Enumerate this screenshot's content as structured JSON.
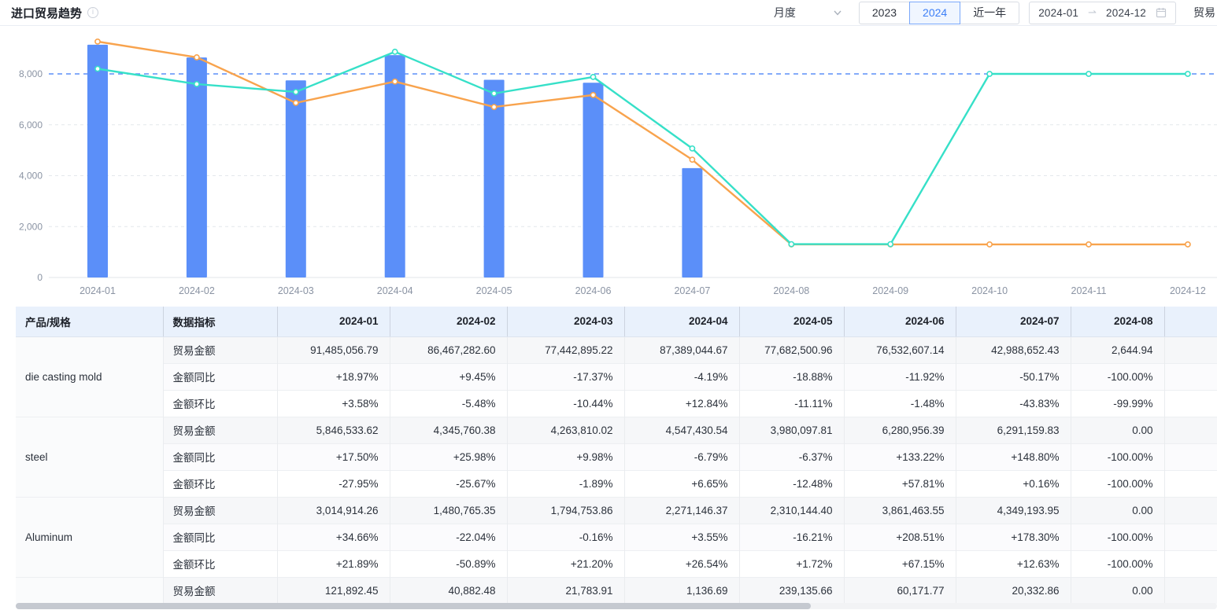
{
  "header": {
    "title": "进口贸易趋势",
    "period_select": "月度",
    "year_tabs": [
      "2023",
      "2024",
      "近一年"
    ],
    "active_year_tab": "2024",
    "date_start": "2024-01",
    "date_end": "2024-12",
    "metric_select_clipped": "贸易"
  },
  "colors": {
    "accent": "#3d7ff7",
    "bar": "#5b8ff9",
    "line_orange": "#f8a34d",
    "line_teal": "#36e0c8",
    "markline": "#5b8ff9",
    "up_red": "#f34b4b",
    "down_green": "#19b477",
    "header_bg": "#e9f1fc"
  },
  "chart_data": {
    "type": "bar",
    "title": "进口贸易趋势",
    "categories": [
      "2024-01",
      "2024-02",
      "2024-03",
      "2024-04",
      "2024-05",
      "2024-06",
      "2024-07",
      "2024-08",
      "2024-09",
      "2024-10",
      "2024-11",
      "2024-12"
    ],
    "series": [
      {
        "name": "bar-series",
        "type": "bar",
        "color": "#5b8ff9",
        "values": [
          9148.5,
          8646.7,
          7744.3,
          8738.9,
          7768.3,
          7653.3,
          4298.9,
          0.3,
          0,
          0,
          0,
          0
        ]
      },
      {
        "name": "line-series-1",
        "type": "line",
        "color": "#f8a34d",
        "values": [
          9270,
          8650,
          6860,
          7700,
          6700,
          7170,
          4630,
          1300,
          1300,
          1300,
          1300,
          1300
        ]
      },
      {
        "name": "line-series-2",
        "type": "line",
        "color": "#36e0c8",
        "values": [
          8200,
          7600,
          7290,
          8870,
          7230,
          7880,
          5070,
          1310,
          1310,
          8000,
          8000,
          8000
        ]
      }
    ],
    "markline": {
      "value": 8000,
      "color": "#5b8ff9",
      "style": "dashed"
    },
    "ylim": [
      0,
      9600
    ],
    "yticks": [
      0,
      2000,
      4000,
      6000,
      8000
    ],
    "ytick_labels": [
      "0",
      "2,000",
      "4,000",
      "6,000",
      "8,000"
    ],
    "grid": "horizontal dashed",
    "legend": "none"
  },
  "table": {
    "columns": [
      "产品/规格",
      "数据指标",
      "2024-01",
      "2024-02",
      "2024-03",
      "2024-04",
      "2024-05",
      "2024-06",
      "2024-07",
      "2024-08",
      ""
    ],
    "products": [
      {
        "name": "die casting mold",
        "rows": [
          {
            "label": "贸易金额",
            "values": [
              "91,485,056.79",
              "86,467,282.60",
              "77,442,895.22",
              "87,389,044.67",
              "77,682,500.96",
              "76,532,607.14",
              "42,988,652.43",
              "2,644.94"
            ]
          },
          {
            "label": "金额同比",
            "values": [
              "+18.97%",
              "+9.45%",
              "-17.37%",
              "-4.19%",
              "-18.88%",
              "-11.92%",
              "-50.17%",
              "-100.00%"
            ]
          },
          {
            "label": "金额环比",
            "values": [
              "+3.58%",
              "-5.48%",
              "-10.44%",
              "+12.84%",
              "-11.11%",
              "-1.48%",
              "-43.83%",
              "-99.99%"
            ]
          }
        ]
      },
      {
        "name": "steel",
        "rows": [
          {
            "label": "贸易金额",
            "values": [
              "5,846,533.62",
              "4,345,760.38",
              "4,263,810.02",
              "4,547,430.54",
              "3,980,097.81",
              "6,280,956.39",
              "6,291,159.83",
              "0.00"
            ]
          },
          {
            "label": "金额同比",
            "values": [
              "+17.50%",
              "+25.98%",
              "+9.98%",
              "-6.79%",
              "-6.37%",
              "+133.22%",
              "+148.80%",
              "-100.00%"
            ]
          },
          {
            "label": "金额环比",
            "values": [
              "-27.95%",
              "-25.67%",
              "-1.89%",
              "+6.65%",
              "-12.48%",
              "+57.81%",
              "+0.16%",
              "-100.00%"
            ]
          }
        ]
      },
      {
        "name": "Aluminum",
        "rows": [
          {
            "label": "贸易金额",
            "values": [
              "3,014,914.26",
              "1,480,765.35",
              "1,794,753.86",
              "2,271,146.37",
              "2,310,144.40",
              "3,861,463.55",
              "4,349,193.95",
              "0.00"
            ]
          },
          {
            "label": "金额同比",
            "values": [
              "+34.66%",
              "-22.04%",
              "-0.16%",
              "+3.55%",
              "-16.21%",
              "+208.51%",
              "+178.30%",
              "-100.00%"
            ]
          },
          {
            "label": "金额环比",
            "values": [
              "+21.89%",
              "-50.89%",
              "+21.20%",
              "+26.54%",
              "+1.72%",
              "+67.15%",
              "+12.63%",
              "-100.00%"
            ]
          }
        ]
      },
      {
        "name": "",
        "rows": [
          {
            "label": "贸易金额",
            "values": [
              "121,892.45",
              "40,882.48",
              "21,783.91",
              "1,136.69",
              "239,135.66",
              "60,171.77",
              "20,332.86",
              "0.00"
            ]
          }
        ]
      }
    ]
  }
}
